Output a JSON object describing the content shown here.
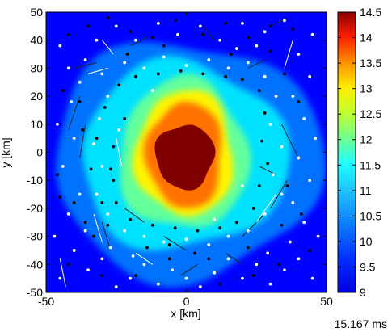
{
  "chart_data": {
    "type": "heatmap",
    "title": "",
    "xlabel": "x [km]",
    "ylabel": "y [km]",
    "xlim": [
      -50,
      50
    ],
    "ylim": [
      -50,
      50
    ],
    "x_ticks": [
      -50,
      0,
      50
    ],
    "y_ticks": [
      -50,
      -40,
      -30,
      -20,
      -10,
      0,
      10,
      20,
      30,
      40,
      50
    ],
    "colorbar": {
      "min": 9,
      "max": 14.5,
      "ticks": [
        9,
        9.5,
        10,
        10.5,
        11,
        11.5,
        12,
        12.5,
        13,
        13.5,
        14,
        14.5
      ],
      "colormap": "jet"
    },
    "field_levels": [
      {
        "level": 9.7,
        "description": "outer background"
      },
      {
        "level": 10.3,
        "description": "outer halo",
        "extent_x": [
          -48,
          48
        ],
        "extent_y": [
          -45,
          40
        ]
      },
      {
        "level": 10.9,
        "description": "cyan ring",
        "extent_x": [
          -38,
          36
        ],
        "extent_y": [
          -35,
          32
        ]
      },
      {
        "level": 11.6,
        "description": "green ring",
        "extent_x": [
          -24,
          22
        ],
        "extent_y": [
          -28,
          26
        ]
      },
      {
        "level": 12.5,
        "description": "yellow ring",
        "extent_x": [
          -18,
          17
        ],
        "extent_y": [
          -23,
          22
        ]
      },
      {
        "level": 13.2,
        "description": "orange ring",
        "extent_x": [
          -14,
          13
        ],
        "extent_y": [
          -20,
          18
        ]
      },
      {
        "level": 14.5,
        "description": "core",
        "extent_x": [
          -11,
          10
        ],
        "extent_y": [
          -13,
          10
        ]
      }
    ],
    "white_particles": [
      [
        -45,
        38
      ],
      [
        -42,
        30
      ],
      [
        -38,
        25
      ],
      [
        -46,
        10
      ],
      [
        -40,
        5
      ],
      [
        -44,
        -5
      ],
      [
        -38,
        -15
      ],
      [
        -42,
        -22
      ],
      [
        -47,
        -30
      ],
      [
        -40,
        -35
      ],
      [
        -45,
        -45
      ],
      [
        -35,
        -42
      ],
      [
        -30,
        -38
      ],
      [
        -25,
        -48
      ],
      [
        -20,
        -45
      ],
      [
        -15,
        -40
      ],
      [
        -10,
        -47
      ],
      [
        -5,
        -42
      ],
      [
        0,
        -45
      ],
      [
        5,
        -48
      ],
      [
        10,
        -43
      ],
      [
        15,
        -38
      ],
      [
        20,
        -45
      ],
      [
        25,
        -40
      ],
      [
        30,
        -47
      ],
      [
        35,
        -42
      ],
      [
        40,
        -38
      ],
      [
        45,
        -45
      ],
      [
        47,
        -30
      ],
      [
        42,
        -25
      ],
      [
        38,
        -18
      ],
      [
        44,
        -10
      ],
      [
        40,
        -2
      ],
      [
        46,
        5
      ],
      [
        42,
        12
      ],
      [
        38,
        20
      ],
      [
        44,
        27
      ],
      [
        40,
        35
      ],
      [
        45,
        42
      ],
      [
        35,
        47
      ],
      [
        28,
        43
      ],
      [
        20,
        46
      ],
      [
        12,
        40
      ],
      [
        5,
        45
      ],
      [
        -3,
        42
      ],
      [
        -10,
        46
      ],
      [
        -18,
        40
      ],
      [
        -25,
        45
      ],
      [
        -32,
        40
      ],
      [
        -36,
        33
      ],
      [
        -30,
        28
      ],
      [
        -22,
        32
      ],
      [
        -15,
        30
      ],
      [
        -8,
        34
      ],
      [
        0,
        31
      ],
      [
        8,
        33
      ],
      [
        15,
        30
      ],
      [
        22,
        32
      ],
      [
        28,
        27
      ],
      [
        32,
        20
      ],
      [
        30,
        10
      ],
      [
        34,
        2
      ],
      [
        31,
        -8
      ],
      [
        34,
        -15
      ],
      [
        28,
        -22
      ],
      [
        22,
        -28
      ],
      [
        15,
        -30
      ],
      [
        8,
        -33
      ],
      [
        0,
        -31
      ],
      [
        -8,
        -32
      ],
      [
        -15,
        -30
      ],
      [
        -22,
        -28
      ],
      [
        -28,
        -22
      ],
      [
        -32,
        -15
      ],
      [
        -30,
        -5
      ],
      [
        -33,
        3
      ],
      [
        -31,
        12
      ],
      [
        -28,
        20
      ],
      [
        -36,
        -28
      ],
      [
        25,
        38
      ],
      [
        -12,
        22
      ],
      [
        10,
        -24
      ],
      [
        -24,
        8
      ],
      [
        20,
        -12
      ],
      [
        37,
        -32
      ],
      [
        -27,
        -34
      ],
      [
        18,
        37
      ],
      [
        -41,
        18
      ],
      [
        29,
        -36
      ],
      [
        -19,
        -37
      ]
    ],
    "black_particles": [
      [
        -42,
        42
      ],
      [
        -35,
        45
      ],
      [
        -28,
        48
      ],
      [
        -20,
        43
      ],
      [
        -12,
        41
      ],
      [
        -4,
        47
      ],
      [
        6,
        42
      ],
      [
        14,
        46
      ],
      [
        22,
        41
      ],
      [
        30,
        45
      ],
      [
        38,
        44
      ],
      [
        -44,
        22
      ],
      [
        -38,
        18
      ],
      [
        -46,
        -8
      ],
      [
        -40,
        -18
      ],
      [
        -36,
        -25
      ],
      [
        -42,
        -40
      ],
      [
        -33,
        -30
      ],
      [
        -28,
        -26
      ],
      [
        -30,
        -18
      ],
      [
        -26,
        -10
      ],
      [
        -32,
        5
      ],
      [
        -29,
        16
      ],
      [
        -24,
        24
      ],
      [
        -18,
        27
      ],
      [
        -10,
        28
      ],
      [
        -2,
        29
      ],
      [
        6,
        28
      ],
      [
        14,
        27
      ],
      [
        20,
        26
      ],
      [
        26,
        22
      ],
      [
        28,
        14
      ],
      [
        27,
        4
      ],
      [
        29,
        -4
      ],
      [
        26,
        -12
      ],
      [
        24,
        -20
      ],
      [
        18,
        -25
      ],
      [
        12,
        -27
      ],
      [
        4,
        -28
      ],
      [
        -4,
        -27
      ],
      [
        -12,
        -26
      ],
      [
        -20,
        -24
      ],
      [
        -25,
        -18
      ],
      [
        -27,
        -6
      ],
      [
        -26,
        2
      ],
      [
        -22,
        12
      ],
      [
        35,
        28
      ],
      [
        40,
        18
      ],
      [
        36,
        -12
      ],
      [
        41,
        -22
      ],
      [
        33,
        -40
      ],
      [
        24,
        -44
      ],
      [
        12,
        -47
      ],
      [
        -6,
        -38
      ],
      [
        -18,
        -44
      ],
      [
        -30,
        -44
      ],
      [
        -8,
        38
      ],
      [
        16,
        35
      ],
      [
        -21,
        35
      ],
      [
        30,
        36
      ],
      [
        -34,
        -6
      ],
      [
        -37,
        8
      ],
      [
        34,
        -26
      ],
      [
        8,
        -38
      ],
      [
        -14,
        -34
      ],
      [
        -6,
        -33
      ],
      [
        3,
        -36
      ],
      [
        22,
        -34
      ],
      [
        44,
        -35
      ],
      [
        -45,
        -16
      ]
    ],
    "tracks": [
      [
        [
          -33,
          -22
        ],
        [
          -30,
          -32
        ]
      ],
      [
        [
          -38,
          20
        ],
        [
          -42,
          8
        ]
      ],
      [
        [
          -36,
          10
        ],
        [
          -38,
          -2
        ]
      ],
      [
        [
          -25,
          5
        ],
        [
          -23,
          -5
        ]
      ],
      [
        [
          -30,
          -25
        ],
        [
          -27,
          -35
        ]
      ],
      [
        [
          20,
          -30
        ],
        [
          28,
          -22
        ]
      ],
      [
        [
          25,
          -25
        ],
        [
          32,
          -15
        ]
      ],
      [
        [
          30,
          -20
        ],
        [
          36,
          -10
        ]
      ],
      [
        [
          34,
          10
        ],
        [
          40,
          -2
        ]
      ],
      [
        [
          35,
          30
        ],
        [
          38,
          40
        ]
      ],
      [
        [
          28,
          33
        ],
        [
          22,
          30
        ]
      ],
      [
        [
          -22,
          -20
        ],
        [
          -15,
          -25
        ]
      ],
      [
        [
          -18,
          -36
        ],
        [
          -12,
          -40
        ]
      ],
      [
        [
          -8,
          -30
        ],
        [
          0,
          -35
        ]
      ],
      [
        [
          14,
          -36
        ],
        [
          20,
          -40
        ]
      ],
      [
        [
          -35,
          28
        ],
        [
          -28,
          30
        ]
      ],
      [
        [
          -40,
          30
        ],
        [
          -32,
          32
        ]
      ],
      [
        [
          -20,
          38
        ],
        [
          -14,
          41
        ]
      ],
      [
        [
          -45,
          -38
        ],
        [
          -43,
          -48
        ]
      ],
      [
        [
          30,
          45
        ],
        [
          36,
          48
        ]
      ],
      [
        [
          26,
          -5
        ],
        [
          32,
          -8
        ]
      ],
      [
        [
          -30,
          40
        ],
        [
          -26,
          35
        ]
      ],
      [
        [
          10,
          40
        ],
        [
          6,
          45
        ]
      ],
      [
        [
          -2,
          -44
        ],
        [
          4,
          -40
        ]
      ]
    ]
  },
  "time_label": "15.167 ms",
  "colors": {
    "jet": [
      "#00008f",
      "#0000ff",
      "#0080ff",
      "#00ffff",
      "#80ff80",
      "#ffff00",
      "#ff8000",
      "#ff0000",
      "#800000"
    ]
  }
}
